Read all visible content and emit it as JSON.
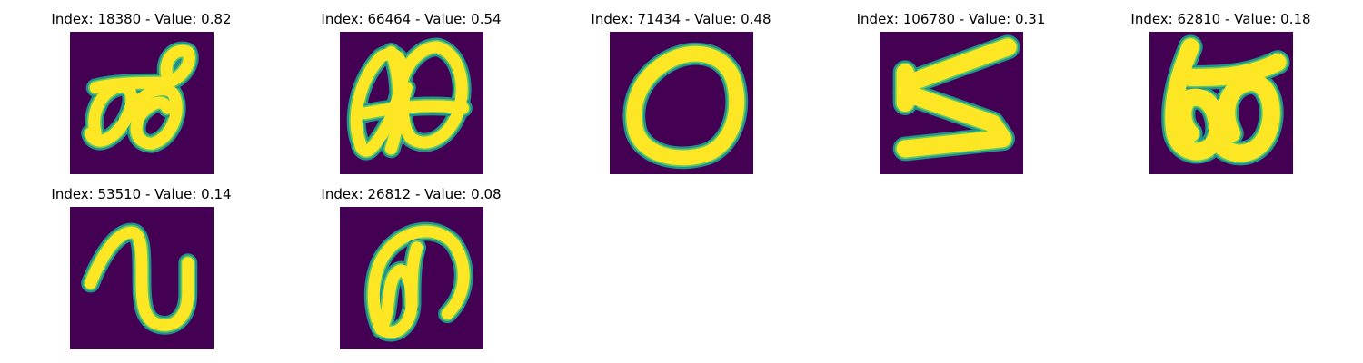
{
  "colors": {
    "background": "#440154",
    "stroke_outer": "#21918c",
    "stroke_mid": "#5ec962",
    "stroke_inner": "#fde725"
  },
  "panels": [
    {
      "title": "Index: 18380 - Value: 0.82",
      "glyph": "cursive-digit-loop-a"
    },
    {
      "title": "Index: 66464 - Value: 0.54",
      "glyph": "cursive-digit-double-loop"
    },
    {
      "title": "Index: 71434 - Value: 0.48",
      "glyph": "zero-ring"
    },
    {
      "title": "Index: 106780 - Value: 0.31",
      "glyph": "zigzag-stroke"
    },
    {
      "title": "Index: 62810 - Value: 0.18",
      "glyph": "bold-double-loop"
    },
    {
      "title": "Index: 53510 - Value: 0.14",
      "glyph": "wave-stroke"
    },
    {
      "title": "Index: 26812 - Value: 0.08",
      "glyph": "arch-loop"
    }
  ]
}
